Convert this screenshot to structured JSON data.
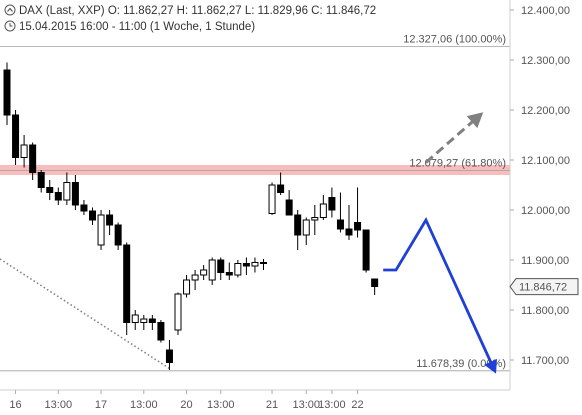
{
  "header": {
    "instrument": "DAX (Last, XXP)",
    "ohlc": "O: 11.862,27  H: 11.862,27  L: 11.829,96  C: 11.846,72",
    "period": "15.04.2015 16:00 - 11:00 (1 Woche, 1 Stunde)"
  },
  "chart_data": {
    "type": "candlestick",
    "y_range": [
      11640,
      12420
    ],
    "y_ticks": [
      {
        "value": 12400,
        "label": "12.400,00"
      },
      {
        "value": 12300,
        "label": "12.300,00"
      },
      {
        "value": 12200,
        "label": "12.200,00"
      },
      {
        "value": 12100,
        "label": "12.100,00"
      },
      {
        "value": 12000,
        "label": "12.000,00"
      },
      {
        "value": 11900,
        "label": "11.900,00"
      },
      {
        "value": 11800,
        "label": "11.800,00"
      },
      {
        "value": 11700,
        "label": "11.700,00"
      }
    ],
    "x_ticks": [
      {
        "bar": 1,
        "label": "16"
      },
      {
        "bar": 6,
        "label": "13:00"
      },
      {
        "bar": 11,
        "label": "17"
      },
      {
        "bar": 16,
        "label": "13:00"
      },
      {
        "bar": 21,
        "label": "20"
      },
      {
        "bar": 25,
        "label": "13:00"
      },
      {
        "bar": 31,
        "label": "21"
      },
      {
        "bar": 35,
        "label": "13:00"
      },
      {
        "bar": 38,
        "label": "13:00"
      },
      {
        "bar": 41,
        "label": "22"
      }
    ],
    "current_price": {
      "value": 11846.72,
      "label": "11.846,72"
    },
    "fib_levels": [
      {
        "value": 12327.06,
        "label": "12.327,06 (100.00%)"
      },
      {
        "value": 12079.27,
        "label": "12.079,27 (61.80%)"
      },
      {
        "value": 11678.39,
        "label": "11.678,39 (0.00%)"
      }
    ],
    "resistance_zone": [
      12070,
      12090
    ],
    "colors": {
      "candle": "#000000",
      "projection": "#1f3fd6",
      "alt_projection": "#808080",
      "zone": "#f4a6a6",
      "trend": "#808080"
    },
    "candles": [
      {
        "o": 12280,
        "h": 12295,
        "l": 12170,
        "c": 12190
      },
      {
        "o": 12190,
        "h": 12200,
        "l": 12090,
        "c": 12105
      },
      {
        "o": 12105,
        "h": 12150,
        "l": 12085,
        "c": 12130
      },
      {
        "o": 12130,
        "h": 12135,
        "l": 12060,
        "c": 12075
      },
      {
        "o": 12075,
        "h": 12080,
        "l": 12035,
        "c": 12045
      },
      {
        "o": 12045,
        "h": 12060,
        "l": 12020,
        "c": 12035
      },
      {
        "o": 12035,
        "h": 12045,
        "l": 12010,
        "c": 12020
      },
      {
        "o": 12020,
        "h": 12075,
        "l": 12010,
        "c": 12055
      },
      {
        "o": 12055,
        "h": 12070,
        "l": 12000,
        "c": 12010
      },
      {
        "o": 12010,
        "h": 12020,
        "l": 11990,
        "c": 11998
      },
      {
        "o": 11998,
        "h": 12005,
        "l": 11970,
        "c": 11980
      },
      {
        "o": 11930,
        "h": 12000,
        "l": 11920,
        "c": 11990
      },
      {
        "o": 11990,
        "h": 12000,
        "l": 11950,
        "c": 11970
      },
      {
        "o": 11970,
        "h": 11975,
        "l": 11920,
        "c": 11930
      },
      {
        "o": 11930,
        "h": 11935,
        "l": 11750,
        "c": 11775
      },
      {
        "o": 11775,
        "h": 11800,
        "l": 11760,
        "c": 11790
      },
      {
        "o": 11775,
        "h": 11790,
        "l": 11760,
        "c": 11782
      },
      {
        "o": 11782,
        "h": 11790,
        "l": 11760,
        "c": 11775
      },
      {
        "o": 11775,
        "h": 11780,
        "l": 11735,
        "c": 11740
      },
      {
        "o": 11720,
        "h": 11740,
        "l": 11680,
        "c": 11695
      },
      {
        "o": 11760,
        "h": 11835,
        "l": 11750,
        "c": 11832
      },
      {
        "o": 11832,
        "h": 11870,
        "l": 11825,
        "c": 11860
      },
      {
        "o": 11860,
        "h": 11880,
        "l": 11840,
        "c": 11870
      },
      {
        "o": 11870,
        "h": 11890,
        "l": 11860,
        "c": 11880
      },
      {
        "o": 11860,
        "h": 11905,
        "l": 11850,
        "c": 11900
      },
      {
        "o": 11900,
        "h": 11905,
        "l": 11860,
        "c": 11875
      },
      {
        "o": 11875,
        "h": 11895,
        "l": 11860,
        "c": 11870
      },
      {
        "o": 11870,
        "h": 11900,
        "l": 11865,
        "c": 11893
      },
      {
        "o": 11893,
        "h": 11905,
        "l": 11870,
        "c": 11888
      },
      {
        "o": 11888,
        "h": 11905,
        "l": 11875,
        "c": 11895
      },
      {
        "o": 11895,
        "h": 11902,
        "l": 11880,
        "c": 11893
      },
      {
        "o": 11993,
        "h": 12055,
        "l": 11990,
        "c": 12050
      },
      {
        "o": 12050,
        "h": 12075,
        "l": 12030,
        "c": 12035
      },
      {
        "o": 12020,
        "h": 12040,
        "l": 11990,
        "c": 11990
      },
      {
        "o": 11990,
        "h": 12000,
        "l": 11920,
        "c": 11950
      },
      {
        "o": 11950,
        "h": 11985,
        "l": 11930,
        "c": 11980
      },
      {
        "o": 11980,
        "h": 12010,
        "l": 11950,
        "c": 11985
      },
      {
        "o": 11985,
        "h": 12030,
        "l": 11980,
        "c": 12012
      },
      {
        "o": 12025,
        "h": 12045,
        "l": 11985,
        "c": 12000
      },
      {
        "o": 11980,
        "h": 12035,
        "l": 11955,
        "c": 11962
      },
      {
        "o": 11962,
        "h": 12010,
        "l": 11940,
        "c": 11950
      },
      {
        "o": 11975,
        "h": 12045,
        "l": 11945,
        "c": 11960
      },
      {
        "o": 11960,
        "h": 11960,
        "l": 11875,
        "c": 11880
      },
      {
        "o": 11862,
        "h": 11862,
        "l": 11830,
        "c": 11847
      }
    ],
    "projection": [
      {
        "bar": 44.0,
        "value": 11880
      },
      {
        "bar": 45.5,
        "value": 11880
      },
      {
        "bar": 49.0,
        "value": 11980
      },
      {
        "bar": 57.0,
        "value": 11680
      }
    ],
    "alt_projection": [
      {
        "bar": 49.0,
        "value": 12095
      },
      {
        "bar": 55.0,
        "value": 12185
      }
    ]
  }
}
